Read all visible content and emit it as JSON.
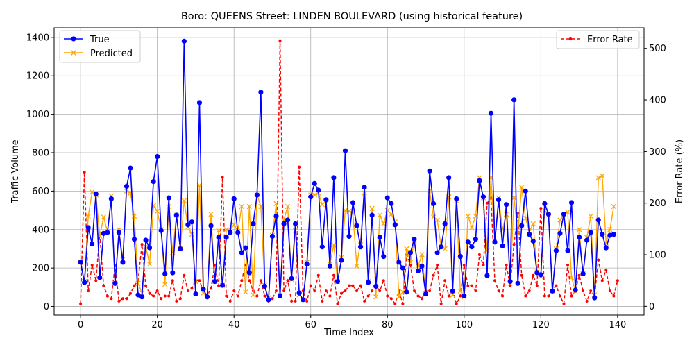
{
  "chart_data": {
    "type": "line",
    "title": "Boro: QUEENS Street: LINDEN BOULEVARD (using historical feature)",
    "xlabel": "Time Index",
    "ylabel": "Traffic Volume",
    "y2label": "Error Rate (%)",
    "xlim": [
      -6.9,
      146.9
    ],
    "ylim": [
      -45,
      1450
    ],
    "y2lim": [
      -17,
      540
    ],
    "xticks": [
      0,
      20,
      40,
      60,
      80,
      100,
      120,
      140
    ],
    "yticks": [
      0,
      200,
      400,
      600,
      800,
      1000,
      1200,
      1400
    ],
    "y2ticks": [
      0,
      100,
      200,
      300,
      400,
      500
    ],
    "grid": true,
    "legend_left_position": "upper-left",
    "legend_right_position": "upper-right",
    "colors": {
      "true": "#0000ff",
      "predicted": "#ffa500",
      "error": "#ff0000",
      "grid": "#b0b0b0"
    },
    "series": [
      {
        "name": "True",
        "axis": "left",
        "marker": "circle",
        "values": [
          230,
          125,
          410,
          325,
          585,
          150,
          380,
          385,
          560,
          120,
          385,
          230,
          625,
          720,
          350,
          60,
          50,
          345,
          305,
          650,
          780,
          395,
          170,
          565,
          175,
          475,
          300,
          1380,
          425,
          440,
          65,
          1060,
          90,
          50,
          420,
          130,
          360,
          110,
          360,
          385,
          560,
          385,
          280,
          305,
          175,
          430,
          580,
          1115,
          105,
          35,
          365,
          470,
          55,
          430,
          450,
          145,
          430,
          70,
          35,
          220,
          570,
          640,
          605,
          310,
          555,
          210,
          670,
          130,
          240,
          810,
          365,
          540,
          420,
          310,
          620,
          125,
          475,
          105,
          360,
          260,
          565,
          535,
          425,
          230,
          200,
          75,
          280,
          350,
          185,
          210,
          65,
          705,
          535,
          280,
          310,
          430,
          670,
          80,
          560,
          260,
          55,
          335,
          310,
          350,
          655,
          570,
          160,
          1005,
          335,
          555,
          315,
          530,
          130,
          1075,
          120,
          420,
          600,
          375,
          340,
          175,
          165,
          535,
          480,
          80,
          290,
          380,
          480,
          290,
          540,
          85,
          360,
          170,
          345,
          385,
          45,
          450,
          375,
          305,
          370,
          375
        ]
      },
      {
        "name": "Predicted",
        "axis": "left",
        "marker": "x",
        "values": [
          230,
          130,
          470,
          595,
          580,
          365,
          465,
          390,
          575,
          120,
          400,
          245,
          600,
          590,
          470,
          120,
          70,
          310,
          220,
          525,
          495,
          400,
          115,
          520,
          280,
          475,
          300,
          550,
          415,
          375,
          130,
          630,
          70,
          60,
          480,
          130,
          395,
          110,
          400,
          400,
          425,
          390,
          520,
          75,
          520,
          60,
          580,
          520,
          110,
          45,
          370,
          535,
          60,
          450,
          520,
          140,
          395,
          60,
          35,
          230,
          580,
          580,
          590,
          530,
          550,
          220,
          320,
          130,
          255,
          500,
          495,
          485,
          210,
          340,
          590,
          130,
          510,
          50,
          475,
          430,
          500,
          480,
          440,
          50,
          75,
          300,
          230,
          340,
          210,
          270,
          65,
          600,
          465,
          450,
          310,
          300,
          570,
          60,
          550,
          80,
          50,
          470,
          410,
          470,
          670,
          565,
          290,
          670,
          340,
          565,
          400,
          480,
          120,
          565,
          380,
          620,
          460,
          390,
          430,
          180,
          155,
          500,
          475,
          80,
          300,
          450,
          480,
          490,
          150,
          80,
          400,
          170,
          360,
          470,
          60,
          670,
          680,
          330,
          400,
          520
        ]
      },
      {
        "name": "Error Rate",
        "axis": "right",
        "style": "dashed",
        "marker": "dot",
        "values": [
          5,
          260,
          30,
          80,
          50,
          140,
          40,
          20,
          15,
          80,
          10,
          15,
          15,
          25,
          40,
          50,
          120,
          40,
          25,
          20,
          30,
          15,
          20,
          20,
          50,
          10,
          15,
          60,
          30,
          35,
          50,
          50,
          30,
          20,
          35,
          80,
          40,
          250,
          20,
          10,
          30,
          20,
          50,
          80,
          50,
          30,
          20,
          50,
          20,
          10,
          15,
          30,
          515,
          30,
          50,
          10,
          10,
          270,
          30,
          10,
          40,
          30,
          60,
          10,
          30,
          20,
          60,
          5,
          25,
          30,
          40,
          40,
          30,
          40,
          10,
          20,
          30,
          40,
          30,
          50,
          20,
          15,
          5,
          30,
          5,
          100,
          80,
          30,
          20,
          15,
          30,
          30,
          60,
          80,
          5,
          50,
          20,
          30,
          5,
          20,
          80,
          40,
          40,
          30,
          100,
          80,
          200,
          210,
          50,
          30,
          20,
          80,
          40,
          120,
          180,
          60,
          20,
          30,
          60,
          40,
          190,
          20,
          20,
          30,
          40,
          20,
          5,
          80,
          20,
          30,
          60,
          30,
          10,
          30,
          20,
          90,
          50,
          70,
          30,
          20,
          50
        ]
      }
    ]
  }
}
